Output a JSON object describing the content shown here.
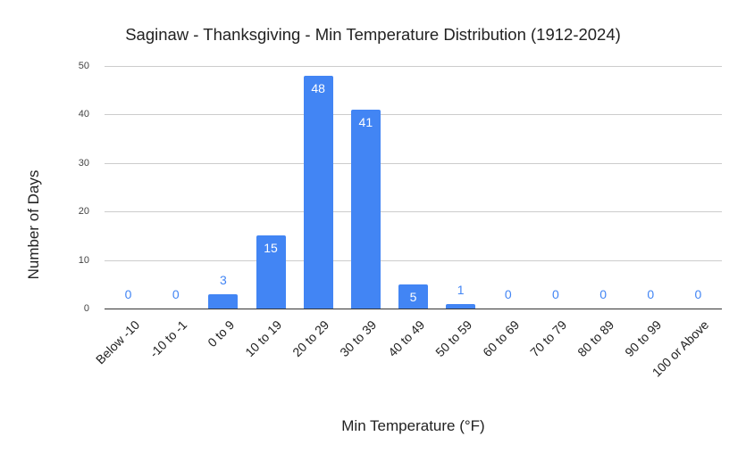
{
  "chart_data": {
    "type": "bar",
    "title": "Saginaw - Thanksgiving - Min Temperature Distribution (1912-2024)",
    "xlabel": "Min Temperature (°F)",
    "ylabel": "Number of Days",
    "categories": [
      "Below -10",
      "-10 to -1",
      "0 to 9",
      "10 to 19",
      "20 to 29",
      "30 to 39",
      "40 to 49",
      "50 to 59",
      "60 to 69",
      "70 to 79",
      "80 to 89",
      "90 to 99",
      "100 or Above"
    ],
    "values": [
      0,
      0,
      3,
      15,
      48,
      41,
      5,
      1,
      0,
      0,
      0,
      0,
      0
    ],
    "ylim": [
      0,
      50
    ],
    "yticks": [
      0,
      10,
      20,
      30,
      40,
      50
    ],
    "grid": true,
    "legend": "none",
    "data_labels": true,
    "bar_color": "#4285f4"
  }
}
